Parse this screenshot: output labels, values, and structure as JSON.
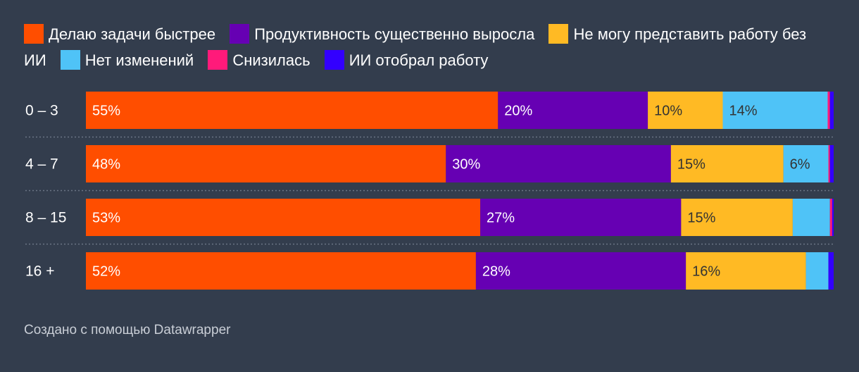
{
  "chart_data": {
    "type": "bar",
    "orientation": "horizontal",
    "stacked": true,
    "categories": [
      "0 – 3",
      "4 – 7",
      "8 – 15",
      "16 +"
    ],
    "series": [
      {
        "name": "Делаю задачи быстрее",
        "color": "#ff4e00",
        "values": [
          55,
          48,
          53,
          52
        ]
      },
      {
        "name": "Продуктивность существенно выросла",
        "color": "#6600b3",
        "values": [
          20,
          30,
          27,
          28
        ]
      },
      {
        "name": "Не могу представить работу без ИИ",
        "color": "#ffba24",
        "values": [
          10,
          15,
          15,
          16
        ]
      },
      {
        "name": "Нет изменений",
        "color": "#4fc3f7",
        "values": [
          14,
          6,
          5,
          3
        ]
      },
      {
        "name": "Снизилась",
        "color": "#ff1a7a",
        "values": [
          0.3,
          0.2,
          0.3,
          0
        ]
      },
      {
        "name": "ИИ отобрал работу",
        "color": "#3300ff",
        "values": [
          0.5,
          0.5,
          0.2,
          0.7
        ]
      }
    ],
    "label_min_value": 6,
    "xlim": [
      0,
      100
    ]
  },
  "credit": "Создано с помощью Datawrapper"
}
